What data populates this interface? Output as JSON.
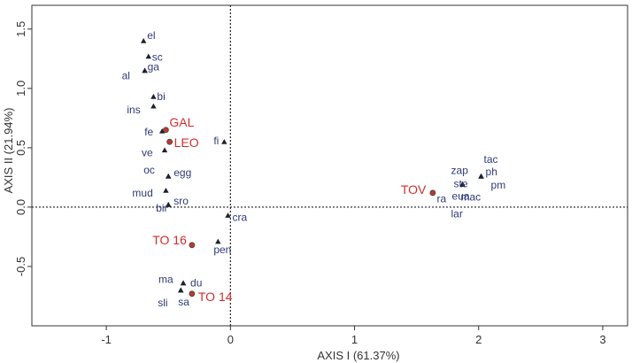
{
  "chart_data": {
    "type": "scatter",
    "xlabel": "AXIS I (61.37%)",
    "ylabel": "AXIS II (21.94%)",
    "xlim": [
      -1.6,
      3.2
    ],
    "ylim": [
      -1.0,
      1.7
    ],
    "xticks": [
      -1,
      0,
      1,
      2,
      3
    ],
    "xtick_labels": [
      "-1",
      "0",
      "1",
      "2",
      "3"
    ],
    "yticks": [
      -0.5,
      0.0,
      0.5,
      1.0,
      1.5
    ],
    "ytick_labels": [
      "-0.5",
      "0.0",
      "0.5",
      "1.0",
      "1.5"
    ],
    "reference_lines": {
      "x": 0,
      "y": 0,
      "style": "dotted"
    },
    "grid": false,
    "colors": {
      "species": "#2e3a78",
      "site_point": "#c0392b",
      "site_label": "#d22d2d",
      "axis": "#333333"
    },
    "series": [
      {
        "name": "species",
        "marker": "triangle",
        "points": [
          {
            "x": -0.7,
            "y": 1.4,
            "label": "el"
          },
          {
            "x": -0.66,
            "y": 1.27,
            "label": "sc"
          },
          {
            "x": -0.69,
            "y": 1.15,
            "label": "ga"
          },
          {
            "x": -0.69,
            "y": 1.15,
            "label": "al"
          },
          {
            "x": -0.62,
            "y": 0.93,
            "label": "bi"
          },
          {
            "x": -0.62,
            "y": 0.85,
            "label": "ins"
          },
          {
            "x": -0.55,
            "y": 0.64,
            "label": "fe"
          },
          {
            "x": -0.53,
            "y": 0.48,
            "label": "ve"
          },
          {
            "x": -0.05,
            "y": 0.55,
            "label": "fi"
          },
          {
            "x": -0.5,
            "y": 0.26,
            "label": "egg"
          },
          {
            "x": -0.5,
            "y": 0.26,
            "label": "oc"
          },
          {
            "x": -0.52,
            "y": 0.14,
            "label": "mud"
          },
          {
            "x": -0.5,
            "y": 0.02,
            "label": "sro"
          },
          {
            "x": -0.5,
            "y": 0.02,
            "label": "bir"
          },
          {
            "x": -0.02,
            "y": -0.07,
            "label": "cra"
          },
          {
            "x": -0.1,
            "y": -0.29,
            "label": "pen"
          },
          {
            "x": -0.38,
            "y": -0.64,
            "label": "du"
          },
          {
            "x": -0.38,
            "y": -0.64,
            "label": "ma"
          },
          {
            "x": -0.4,
            "y": -0.7,
            "label": "sa"
          },
          {
            "x": -0.4,
            "y": -0.7,
            "label": "sli"
          },
          {
            "x": 2.02,
            "y": 0.26,
            "label": "ph"
          },
          {
            "x": 2.02,
            "y": 0.26,
            "label": "tac"
          },
          {
            "x": 2.02,
            "y": 0.26,
            "label": "pm"
          },
          {
            "x": 1.87,
            "y": 0.19,
            "label": "ste"
          },
          {
            "x": 1.87,
            "y": 0.19,
            "label": "zap"
          },
          {
            "x": 1.87,
            "y": 0.19,
            "label": "eua"
          },
          {
            "x": 1.87,
            "y": 0.19,
            "label": "mac"
          },
          {
            "x": 1.87,
            "y": 0.19,
            "label": "ra"
          },
          {
            "x": 1.87,
            "y": 0.19,
            "label": "lar"
          }
        ]
      },
      {
        "name": "sites",
        "marker": "circle",
        "points": [
          {
            "x": -0.52,
            "y": 0.65,
            "label": "GAL"
          },
          {
            "x": -0.49,
            "y": 0.55,
            "label": "LEO"
          },
          {
            "x": 1.63,
            "y": 0.12,
            "label": "TOV"
          },
          {
            "x": -0.31,
            "y": -0.32,
            "label": "TO 16"
          },
          {
            "x": -0.31,
            "y": -0.73,
            "label": "TO 14"
          }
        ]
      }
    ]
  }
}
